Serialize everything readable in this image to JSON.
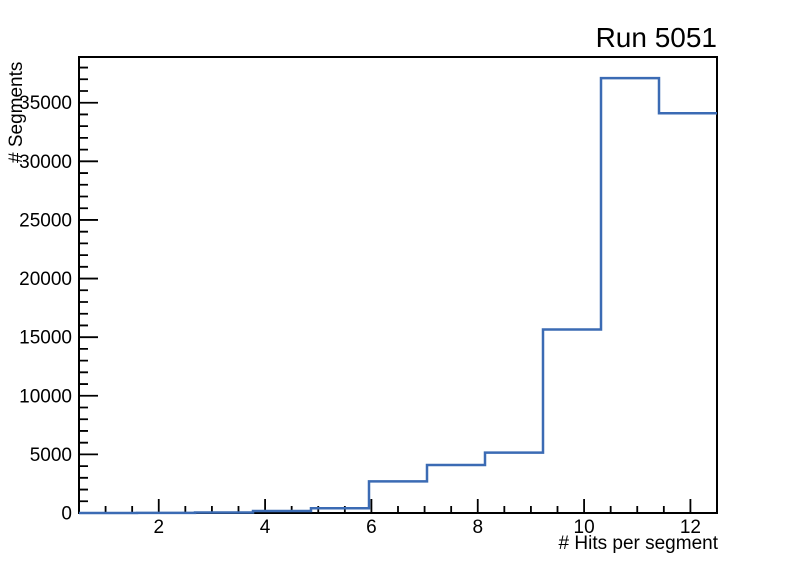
{
  "window": {
    "background_color": "#ffffff"
  },
  "chart_data": {
    "type": "bar",
    "subtype": "histogram-step-outline",
    "title": "Run 5051",
    "xlabel": "# Hits per segment",
    "ylabel": "# Segments",
    "xlim": [
      0.5,
      12.5
    ],
    "ylim": [
      0,
      38900
    ],
    "x_major_ticks": [
      2,
      4,
      6,
      8,
      10,
      12
    ],
    "x_minor_step": 0.5,
    "y_major_ticks": [
      0,
      5000,
      10000,
      15000,
      20000,
      25000,
      30000,
      35000
    ],
    "y_minor_step": 1000,
    "grid": false,
    "legend_position": "none",
    "bin_edges": [
      0.5,
      1.5909,
      2.6818,
      3.7727,
      4.8636,
      5.9545,
      7.0455,
      8.1364,
      9.2273,
      10.3182,
      11.4091,
      12.5
    ],
    "values": [
      0,
      10,
      40,
      170,
      400,
      2700,
      4100,
      5150,
      15650,
      37100,
      34100
    ],
    "line_color": "#3b6bb4",
    "axis_color": "#000000",
    "text_color": "#000000"
  }
}
